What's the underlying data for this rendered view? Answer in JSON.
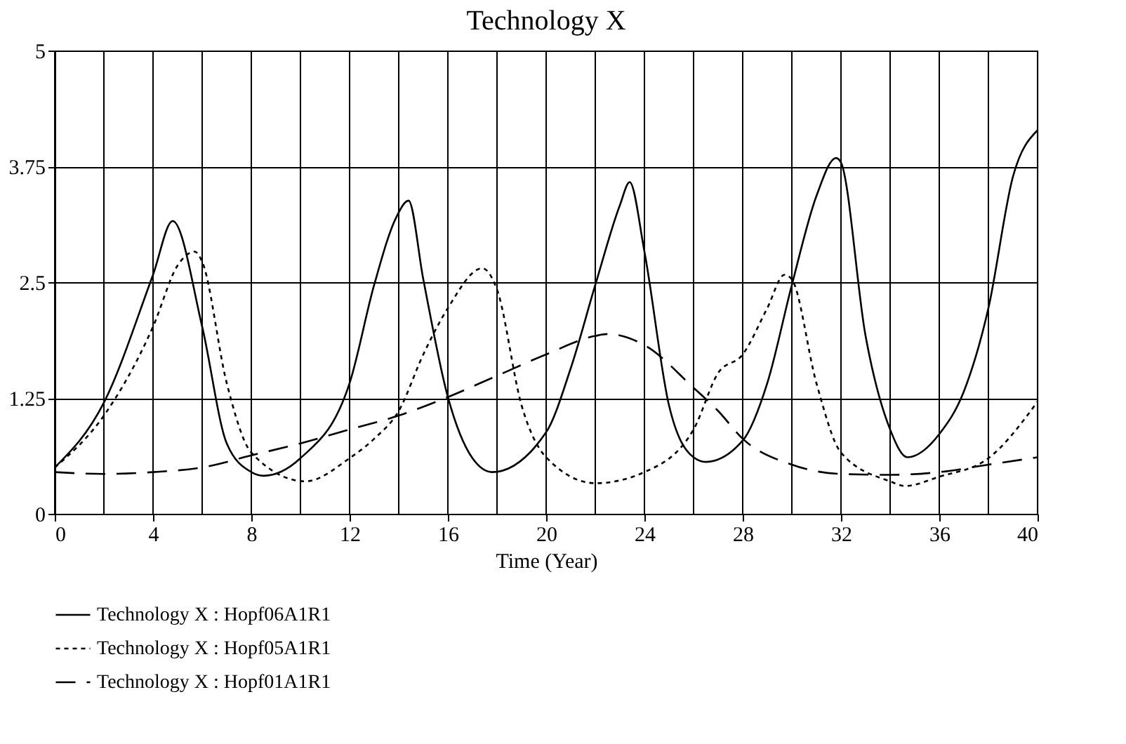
{
  "chart_data": {
    "type": "line",
    "title": "Technology X",
    "xlabel": "Time (Year)",
    "xlim": [
      0,
      40
    ],
    "xticks": [
      0,
      {
        "value": 2,
        "label": null
      },
      4,
      {
        "value": 6,
        "label": null
      },
      8,
      {
        "value": 10,
        "label": null
      },
      12,
      {
        "value": 14,
        "label": null
      },
      16,
      {
        "value": 18,
        "label": null
      },
      20,
      {
        "value": 22,
        "label": null
      },
      24,
      {
        "value": 26,
        "label": null
      },
      28,
      {
        "value": 30,
        "label": null
      },
      32,
      {
        "value": 34,
        "label": null
      },
      36,
      {
        "value": 38,
        "label": null
      },
      40
    ],
    "ylim": [
      0,
      5
    ],
    "yticks": [
      0,
      1.25,
      2.5,
      3.75,
      5
    ],
    "grid": true,
    "legend": "bottom",
    "series": [
      {
        "name": "Technology X : Hopf06A1R1",
        "color": "#000000",
        "line_style": "solid",
        "x": [
          0,
          2,
          4,
          4.8,
          6,
          7,
          8,
          8.5,
          10,
          12,
          13,
          13.9,
          14.4,
          15,
          16,
          17,
          17.8,
          20,
          21,
          22,
          23,
          23.4,
          24,
          25,
          26,
          26.5,
          28,
          29,
          30,
          31,
          31.8,
          32,
          33,
          34,
          34.7,
          36,
          37,
          38,
          39,
          40
        ],
        "values": [
          0.5,
          1.2,
          2.58,
          3.16,
          2.02,
          0.76,
          0.45,
          0.41,
          0.6,
          1.41,
          2.47,
          3.2,
          3.38,
          2.53,
          1.26,
          0.6,
          0.45,
          0.88,
          1.57,
          2.47,
          3.33,
          3.58,
          2.83,
          1.17,
          0.61,
          0.56,
          0.79,
          1.41,
          2.47,
          3.43,
          3.84,
          3.79,
          1.92,
          0.91,
          0.61,
          0.86,
          1.32,
          2.22,
          3.64,
          4.14
        ]
      },
      {
        "name": "Technology X : Hopf05A1R1",
        "color": "#000000",
        "line_style": "dotted",
        "x": [
          0,
          2,
          4,
          5,
          5.7,
          6,
          7,
          8,
          10.2,
          12,
          13,
          14,
          15,
          16,
          17.4,
          18,
          19,
          20,
          22,
          24,
          26,
          27,
          28,
          29,
          29.7,
          30,
          31,
          32,
          34,
          34.6,
          36,
          38,
          40
        ],
        "values": [
          0.5,
          1.06,
          2.02,
          2.68,
          2.83,
          2.72,
          1.41,
          0.66,
          0.35,
          0.6,
          0.81,
          1.11,
          1.72,
          2.22,
          2.65,
          2.42,
          1.17,
          0.61,
          0.33,
          0.45,
          0.91,
          1.52,
          1.72,
          2.22,
          2.58,
          2.53,
          1.41,
          0.66,
          0.35,
          0.3,
          0.4,
          0.6,
          1.21
        ]
      },
      {
        "name": "Technology X : Hopf01A1R1",
        "color": "#000000",
        "line_style": "dashed",
        "x": [
          0,
          2,
          4,
          6,
          8,
          10,
          12,
          14,
          16,
          18,
          20,
          22,
          22.5,
          24,
          26,
          27,
          28,
          30,
          32,
          34,
          36,
          38,
          40
        ],
        "values": [
          0.45,
          0.43,
          0.45,
          0.5,
          0.63,
          0.76,
          0.91,
          1.06,
          1.26,
          1.49,
          1.72,
          1.92,
          1.94,
          1.82,
          1.36,
          1.11,
          0.81,
          0.53,
          0.43,
          0.42,
          0.45,
          0.53,
          0.61
        ]
      }
    ]
  }
}
